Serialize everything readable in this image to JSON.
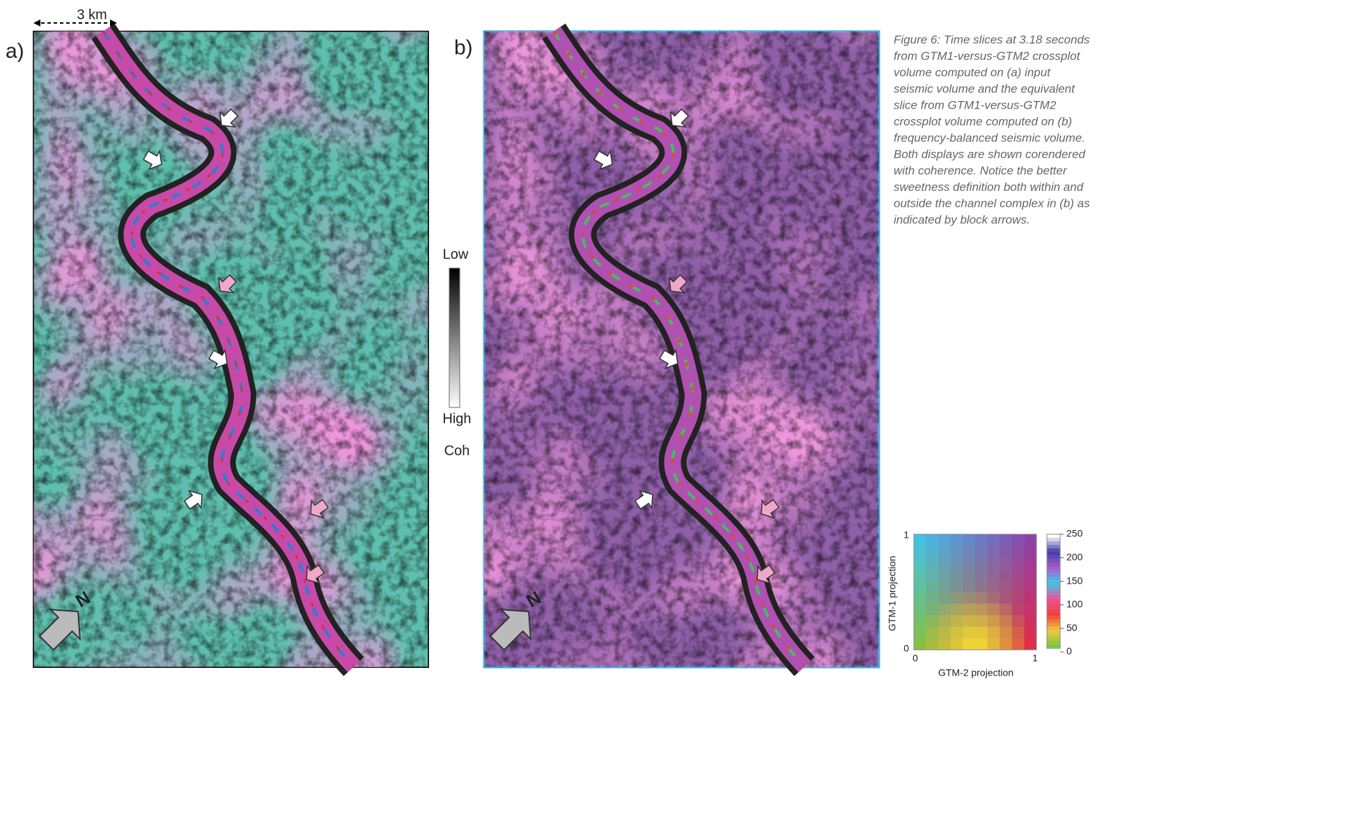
{
  "scale_bar": "3 km",
  "panels": [
    {
      "label": "a)",
      "north": "N"
    },
    {
      "label": "b)",
      "north": "N"
    }
  ],
  "coherence_bar": {
    "top": "Low",
    "bottom": "High",
    "name": "Coh"
  },
  "caption": [
    "Figure 6: Time slices at 3.18 seconds",
    "from GTM1-versus-GTM2 crossplot",
    "volume computed on (a) input",
    "seismic volume and the equivalent",
    "slice from GTM1-versus-GTM2",
    "crossplot volume computed on (b)",
    "frequency-balanced seismic volume.",
    "Both displays are shown corendered",
    "with coherence. Notice the better",
    "sweetness definition both within and",
    "outside the channel complex in (b) as",
    "indicated by block arrows."
  ],
  "colormap": {
    "y_label": "GTM-1 projection",
    "x_label": "GTM-2 projection",
    "y_top": "1",
    "y_bottom": "0",
    "x_left": "0",
    "x_right": "1",
    "colorbar_ticks": [
      "250",
      "200",
      "150",
      "100",
      "50",
      "0"
    ]
  }
}
